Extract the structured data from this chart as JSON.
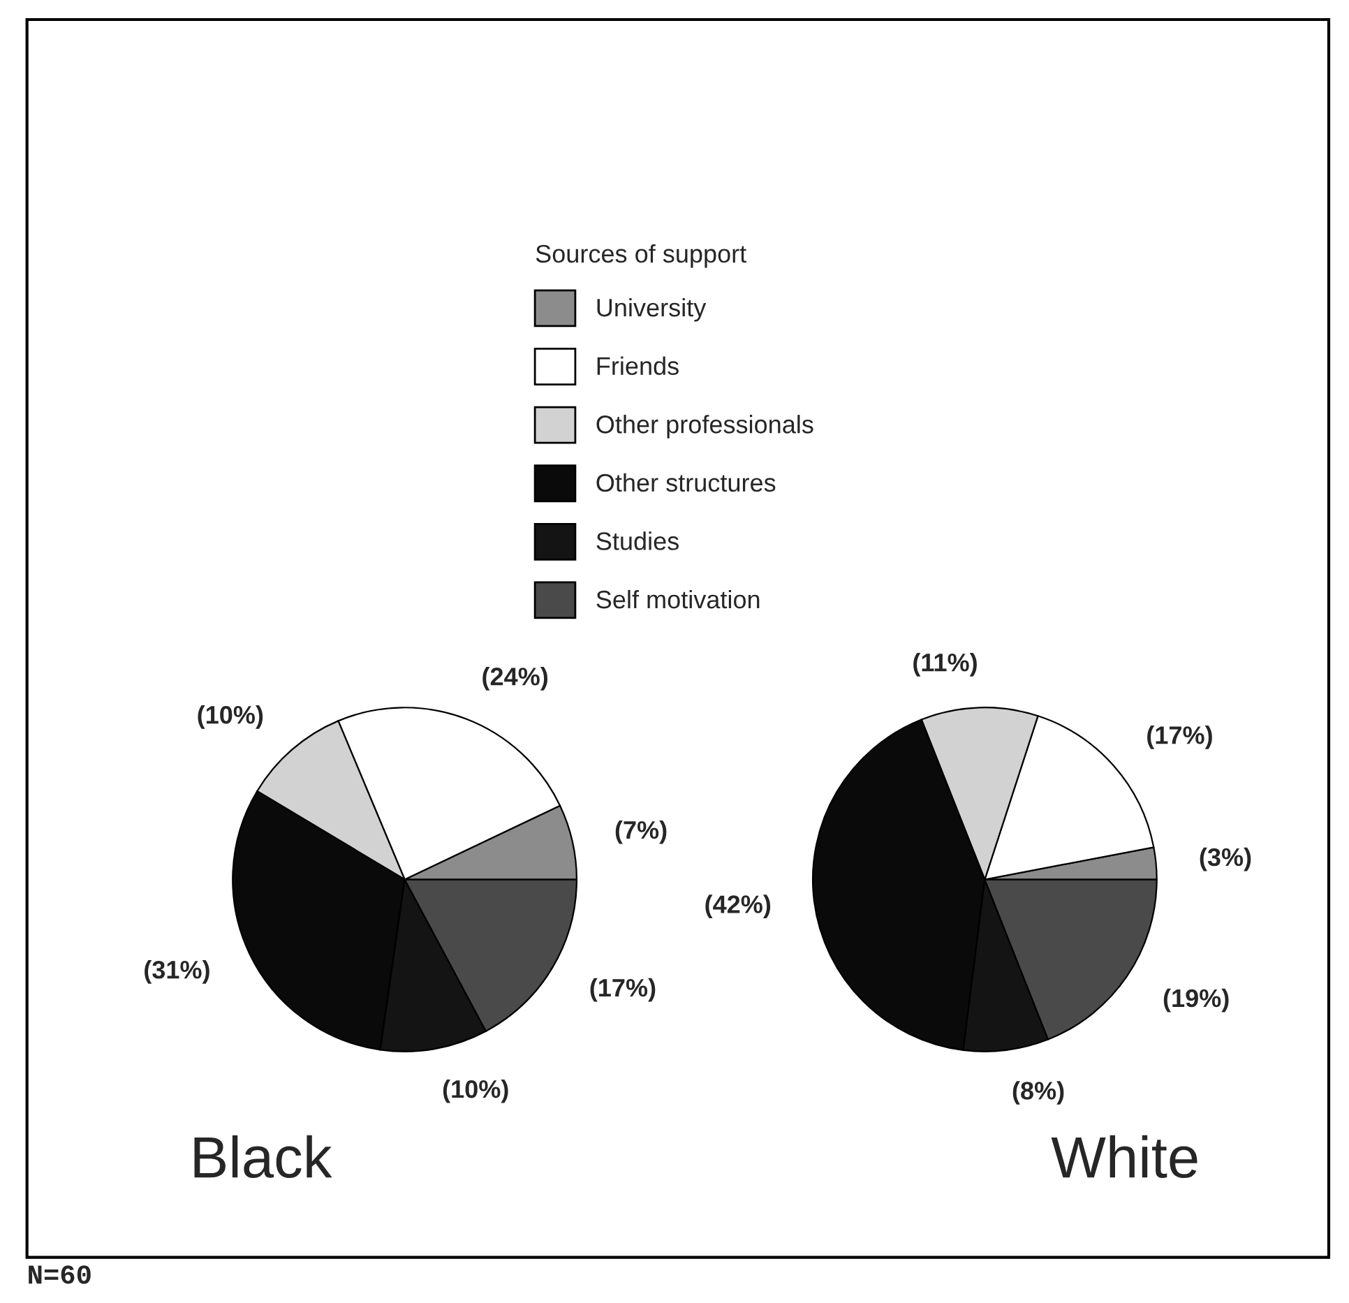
{
  "chart_data": [
    {
      "type": "pie",
      "title": "Black",
      "categories": [
        "University",
        "Friends",
        "Other professionals",
        "Other structures",
        "Studies",
        "Self motivation"
      ],
      "values": [
        7,
        24,
        10,
        31,
        10,
        17
      ],
      "value_labels": [
        "(7%)",
        "(24%)",
        "(10%)",
        "(31%)",
        "(10%)",
        "(17%)"
      ],
      "colors": [
        "#8c8c8c",
        "#ffffff",
        "#d2d2d2",
        "#0a0a0a",
        "#141414",
        "#4a4a4a"
      ],
      "legend": "top",
      "legend_title": "Sources of support",
      "annotations": [
        "N=60"
      ]
    },
    {
      "type": "pie",
      "title": "White",
      "categories": [
        null,
        null,
        null,
        null,
        null,
        null
      ],
      "values": [
        3,
        17,
        11,
        42,
        8,
        19
      ],
      "value_labels": [
        "(3%)",
        "(17%)",
        "(11%)",
        "(42%)",
        "(8%)",
        "(19%)"
      ],
      "colors": [
        "#8c8c8c",
        "#ffffff",
        "#d2d2d2",
        "#0a0a0a",
        "#141414",
        "#4a4a4a"
      ]
    }
  ]
}
